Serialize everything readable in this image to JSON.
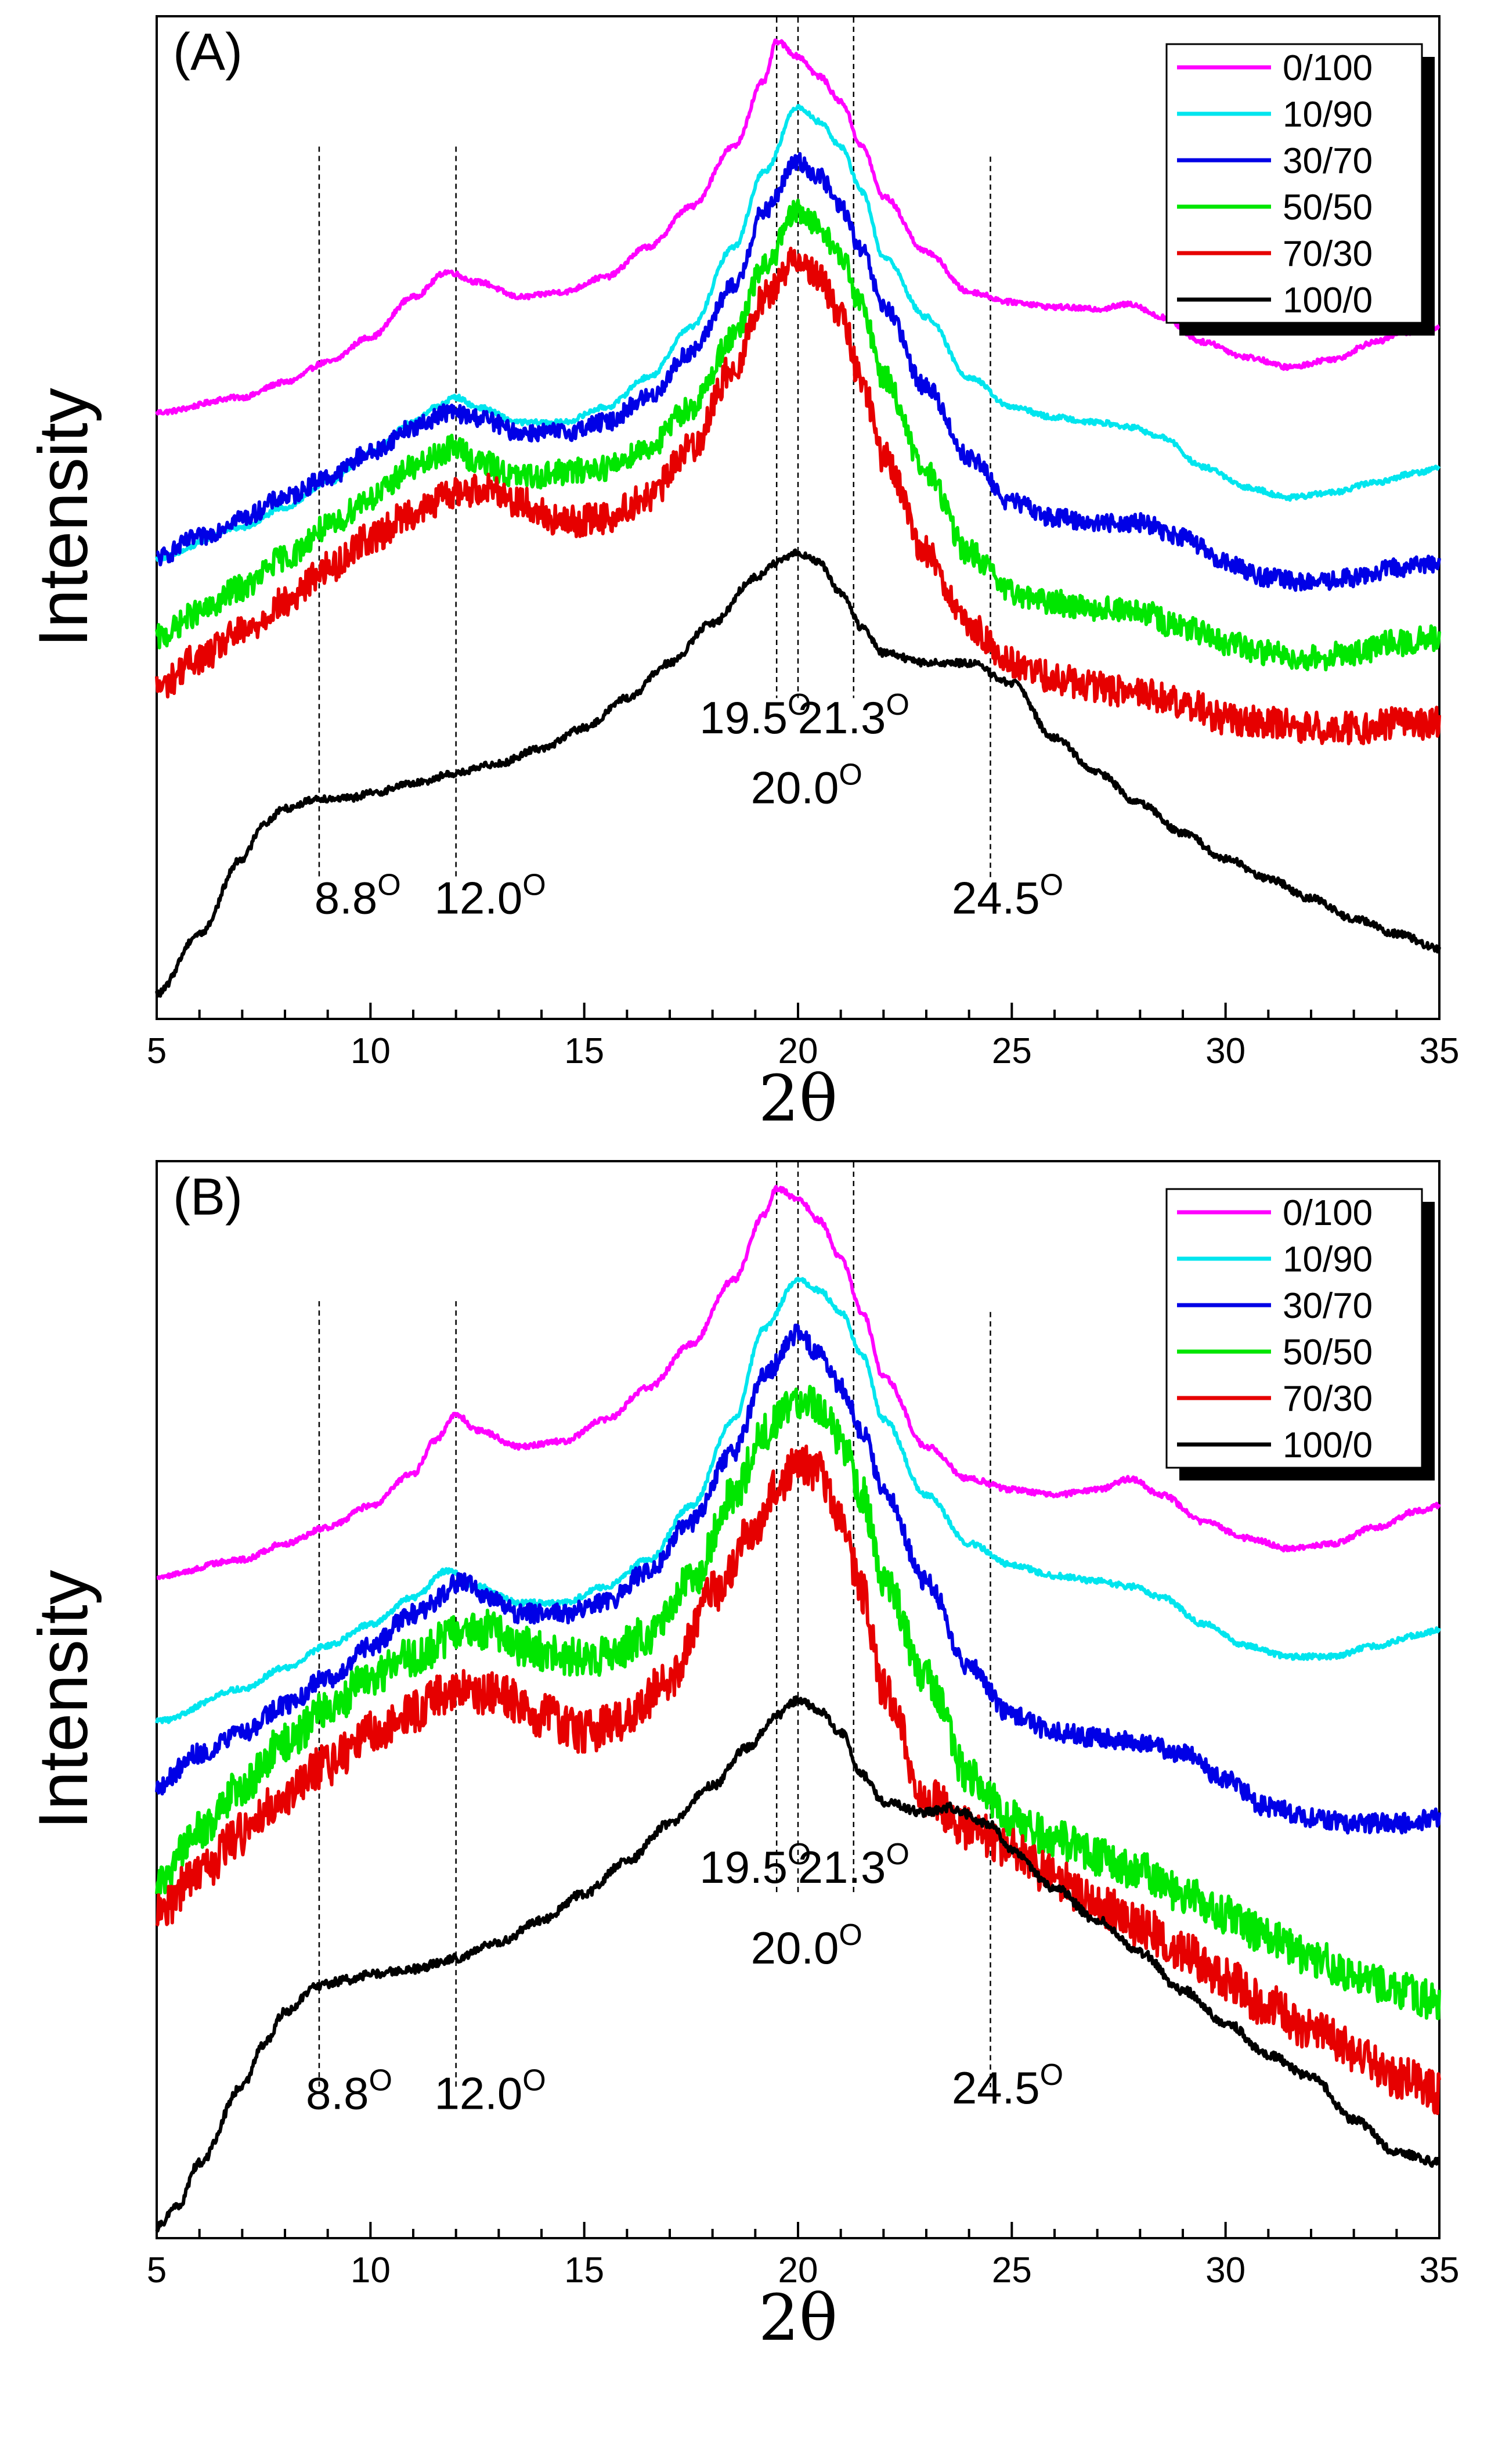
{
  "chart_data": [
    {
      "type": "line",
      "panel_label": "(A)",
      "xlabel": "2θ",
      "ylabel": "Intensity",
      "xlim": [
        5,
        35
      ],
      "ylim": [
        0,
        100
      ],
      "xticks": [
        "5",
        "10",
        "15",
        "20",
        "25",
        "30",
        "35"
      ],
      "legend_position": "top-right",
      "series": [
        {
          "name": "0/100",
          "color": "#ff00ff",
          "noise": 0.25,
          "x": [
            5,
            7,
            8,
            9,
            10,
            11,
            11.8,
            12.5,
            13.5,
            14.5,
            15.5,
            16.5,
            17.5,
            18.5,
            19.2,
            19.5,
            20.0,
            20.5,
            21.0,
            21.5,
            22.0,
            23.0,
            24.0,
            25.0,
            26.0,
            27.0,
            27.8,
            28.5,
            29.5,
            30.5,
            31.5,
            32.5,
            33.5,
            34.2,
            35
          ],
          "y": [
            60.5,
            62,
            63.5,
            65.5,
            68,
            72,
            74.5,
            73.5,
            72,
            72.5,
            74,
            77,
            81,
            87,
            93.5,
            97.5,
            96,
            94,
            91.5,
            87,
            82,
            76.5,
            72.5,
            71.5,
            71,
            70.8,
            71.3,
            70,
            67.5,
            66,
            65,
            65.8,
            67.5,
            68.5,
            69
          ]
        },
        {
          "name": "10/90",
          "color": "#00e5ee",
          "noise": 0.25,
          "x": [
            5,
            7,
            8,
            9,
            10,
            11,
            11.5,
            12.0,
            12.5,
            13.5,
            14.5,
            15.5,
            16.5,
            17.5,
            18.5,
            19.2,
            20.0,
            20.5,
            21.0,
            21.5,
            22.0,
            23.0,
            24.0,
            25.0,
            26.0,
            27.0,
            27.8,
            28.5,
            29.5,
            30.5,
            31.5,
            32.5,
            33.5,
            34.5,
            35
          ],
          "y": [
            46,
            49,
            51,
            53.5,
            56.5,
            59.5,
            61,
            62,
            61,
            59.5,
            59.5,
            61,
            64,
            69,
            77,
            84.5,
            91,
            89.5,
            87,
            82.5,
            76,
            70,
            64,
            61,
            60,
            59.5,
            59,
            58,
            55,
            53,
            52,
            52.5,
            53.5,
            54.5,
            55
          ]
        },
        {
          "name": "30/70",
          "color": "#0000e6",
          "noise": 0.9,
          "x": [
            5,
            6,
            7,
            8,
            9,
            10,
            11,
            11.8,
            12.5,
            13.5,
            14.5,
            15.5,
            16.5,
            17.5,
            18.5,
            19.2,
            20.0,
            20.5,
            21.0,
            21.5,
            22.0,
            23.0,
            24.0,
            25.0,
            26.0,
            27.0,
            28.0,
            29.0,
            30.0,
            31.0,
            32.0,
            33.0,
            34.0,
            35
          ],
          "y": [
            46,
            48,
            50,
            52,
            54,
            56.5,
            59,
            60.5,
            60,
            58.5,
            58.5,
            59.5,
            62,
            66.5,
            73,
            80.5,
            85.5,
            84,
            81,
            76.5,
            71,
            63,
            56,
            51.5,
            50,
            49.5,
            49.5,
            48,
            45.5,
            44,
            43.5,
            44,
            45,
            45.5
          ]
        },
        {
          "name": "50/50",
          "color": "#00e600",
          "noise": 1.3,
          "x": [
            5,
            6,
            7,
            8,
            9,
            10,
            11,
            12.0,
            12.5,
            13.5,
            14.5,
            15.5,
            16.5,
            17.5,
            18.5,
            19.2,
            20.0,
            20.5,
            21.0,
            21.5,
            22.0,
            23.0,
            24.0,
            25.0,
            26.0,
            27.0,
            28.0,
            29.0,
            30.0,
            31.0,
            32.0,
            33.0,
            34.0,
            35
          ],
          "y": [
            38,
            40.5,
            43,
            46,
            49,
            52,
            55,
            57,
            55.5,
            54,
            54.5,
            55,
            57,
            61,
            68,
            75,
            80.5,
            79,
            76,
            71,
            64,
            54.5,
            46.5,
            42.5,
            41.5,
            41,
            40.5,
            39,
            37.5,
            36.5,
            36,
            36.5,
            37.5,
            38
          ]
        },
        {
          "name": "70/30",
          "color": "#e60000",
          "noise": 1.6,
          "x": [
            5,
            6,
            7,
            8,
            9,
            10,
            11,
            12.0,
            12.8,
            13.5,
            14.5,
            15.5,
            16.5,
            17.5,
            18.5,
            19.2,
            20.0,
            20.5,
            21.0,
            21.5,
            22.0,
            23.0,
            24.0,
            25.0,
            26.0,
            27.0,
            28.0,
            29.0,
            30.0,
            31.0,
            32.0,
            33.0,
            34.0,
            35
          ],
          "y": [
            33,
            36,
            38.5,
            41.5,
            45,
            48,
            50.5,
            52.5,
            53,
            51.5,
            49.5,
            50,
            52,
            57,
            65,
            72,
            76,
            74,
            70,
            63.5,
            56,
            46.5,
            39,
            35.5,
            34,
            33,
            32.5,
            31.5,
            30,
            29.5,
            29,
            29,
            29.5,
            29.5
          ]
        },
        {
          "name": "100/0",
          "color": "#000000",
          "noise": 0.35,
          "x": [
            5,
            6,
            7,
            7.5,
            8,
            8.8,
            9.5,
            10,
            11,
            12,
            13,
            14,
            15,
            16,
            17,
            18,
            19,
            19.5,
            20.0,
            20.5,
            21.0,
            21.5,
            22,
            23,
            24,
            25,
            26,
            27,
            28,
            29,
            30,
            31,
            32,
            33,
            34,
            35
          ],
          "y": [
            2.5,
            8.5,
            16,
            19.5,
            21,
            22,
            22,
            22.5,
            23.5,
            24.5,
            25.5,
            27,
            29,
            32,
            35.5,
            39.5,
            44,
            45.5,
            46.5,
            45.5,
            42.5,
            39,
            36.5,
            35.5,
            35.5,
            33.5,
            28,
            24.5,
            21.5,
            18.5,
            16,
            14,
            12,
            10,
            8.5,
            7
          ]
        }
      ],
      "reference_lines": [
        8.8,
        12.0,
        19.5,
        20.0,
        21.3,
        24.5
      ],
      "annotations": [
        {
          "base": "8.8",
          "sup": "O",
          "x": 9.7,
          "y": 10.5
        },
        {
          "base": "12.0",
          "sup": "O",
          "x": 12.8,
          "y": 10.5
        },
        {
          "base": "19.5",
          "sup": "O",
          "x": 19.0,
          "y": 28.5
        },
        {
          "base": "21.3",
          "sup": "O",
          "x": 21.3,
          "y": 28.5
        },
        {
          "base": "20.0",
          "sup": "O",
          "x": 20.2,
          "y": 21.5
        },
        {
          "base": "24.5",
          "sup": "O",
          "x": 24.9,
          "y": 10.5
        }
      ]
    },
    {
      "type": "line",
      "panel_label": "(B)",
      "xlabel": "2θ",
      "ylabel": "Intensity",
      "xlim": [
        5,
        35
      ],
      "ylim": [
        0,
        100
      ],
      "xticks": [
        "5",
        "10",
        "15",
        "20",
        "25",
        "30",
        "35"
      ],
      "legend_position": "top-right",
      "series": [
        {
          "name": "0/100",
          "color": "#ff00ff",
          "noise": 0.25,
          "x": [
            5,
            7,
            8,
            9,
            10,
            11,
            11.5,
            12.0,
            12.5,
            13.5,
            14.5,
            15.5,
            16.5,
            17.5,
            18.5,
            19.2,
            19.5,
            20.0,
            20.5,
            21.0,
            21.5,
            22.0,
            23.0,
            24.0,
            25.0,
            26.0,
            27.0,
            27.8,
            28.5,
            29.5,
            30.5,
            31.5,
            32.5,
            33.5,
            34.5,
            35
          ],
          "y": [
            61.5,
            63,
            64.5,
            66,
            68,
            71,
            74,
            76.5,
            75,
            73.5,
            74,
            76,
            79,
            83,
            89,
            95,
            97.5,
            96.5,
            94.5,
            91,
            86,
            80,
            73.5,
            70.5,
            69.5,
            69,
            69.5,
            70.5,
            69,
            66.5,
            65,
            64,
            64.5,
            66,
            67.5,
            68
          ]
        },
        {
          "name": "10/90",
          "color": "#00e5ee",
          "noise": 0.25,
          "x": [
            5,
            7,
            8,
            9,
            10,
            11,
            11.8,
            12.5,
            13.5,
            14.5,
            15.5,
            16.5,
            17.5,
            18.5,
            19.2,
            20.0,
            20.5,
            21.0,
            21.5,
            22.0,
            23.0,
            24.0,
            25.0,
            26.0,
            27.0,
            27.8,
            28.5,
            29.5,
            30.5,
            31.5,
            32.5,
            33.5,
            34.5,
            35
          ],
          "y": [
            48,
            51,
            53,
            55,
            57,
            59.5,
            62,
            60.5,
            59,
            59,
            60.5,
            63,
            68,
            76,
            84.5,
            89,
            88,
            86,
            82,
            76,
            69,
            64.5,
            62.5,
            61.5,
            61,
            60.5,
            59.5,
            57,
            55,
            54,
            54,
            55,
            56,
            56.5
          ]
        },
        {
          "name": "30/70",
          "color": "#0000e6",
          "noise": 0.9,
          "x": [
            5,
            6,
            7,
            8,
            9,
            10,
            11,
            12.2,
            12.8,
            13.5,
            14.5,
            15.5,
            16.5,
            17.5,
            18.5,
            19.2,
            20.0,
            20.5,
            21.0,
            21.5,
            22.0,
            23.0,
            24.0,
            25.0,
            26.0,
            27.0,
            28.0,
            29.0,
            30.0,
            31.0,
            32.0,
            33.0,
            34.0,
            35
          ],
          "y": [
            42,
            45,
            47,
            49.5,
            52,
            55,
            58,
            61,
            59.5,
            58,
            58,
            59,
            62,
            66.5,
            73,
            80,
            84,
            82,
            79,
            75,
            69.5,
            61,
            53,
            48.5,
            47,
            46.5,
            46,
            45,
            42.5,
            40,
            39,
            38.5,
            38.5,
            39
          ]
        },
        {
          "name": "50/50",
          "color": "#00e600",
          "noise": 1.8,
          "x": [
            5,
            6,
            7,
            8,
            9,
            10,
            11,
            12,
            12.8,
            13.5,
            14.5,
            15.5,
            16.5,
            17.5,
            18.5,
            19.2,
            20.0,
            20.5,
            21.0,
            21.5,
            22.0,
            23.0,
            24.0,
            25.0,
            26.0,
            27.0,
            28.0,
            29.0,
            30.0,
            31.0,
            32.0,
            33.0,
            34.0,
            35
          ],
          "y": [
            33,
            38,
            42,
            46,
            49,
            52,
            54,
            56,
            56.5,
            55,
            54,
            54,
            56,
            61,
            69,
            75,
            78,
            77,
            74,
            69,
            61,
            52,
            43,
            39,
            37,
            35.5,
            34,
            32,
            30,
            28,
            26,
            24.5,
            23,
            22
          ]
        },
        {
          "name": "70/30",
          "color": "#e60000",
          "noise": 2.0,
          "x": [
            5,
            6,
            7,
            8,
            9,
            10,
            11,
            12,
            13,
            14,
            15,
            16,
            17,
            18,
            19,
            19.5,
            20.0,
            20.5,
            21.0,
            21.5,
            22.0,
            23.0,
            24.0,
            25.0,
            26.0,
            27.0,
            28.0,
            29.0,
            30.0,
            31.0,
            32.0,
            33.0,
            34.0,
            35
          ],
          "y": [
            30,
            34,
            37.5,
            41,
            44,
            47,
            49,
            51,
            50.5,
            48.5,
            47,
            48,
            52,
            60,
            66,
            69.5,
            72,
            71,
            67,
            60,
            51,
            41,
            38,
            36,
            33.5,
            31,
            29,
            26.5,
            24,
            21.5,
            19.5,
            17.5,
            15,
            13.5
          ]
        },
        {
          "name": "100/0",
          "color": "#000000",
          "noise": 0.4,
          "x": [
            5,
            5.5,
            6,
            7,
            7.5,
            8,
            8.8,
            9.5,
            10,
            11,
            12,
            13,
            14,
            15,
            16,
            17,
            18,
            18.8,
            19.5,
            20.0,
            20.5,
            21.0,
            21.5,
            22,
            23,
            23.5,
            24.5,
            25,
            26,
            27,
            28,
            29,
            30,
            31,
            32,
            33,
            34,
            35
          ],
          "y": [
            1,
            3,
            7,
            14,
            18,
            21,
            23.5,
            24,
            24.5,
            25,
            26,
            27.5,
            29.5,
            32,
            35,
            38.5,
            42,
            45.5,
            48.5,
            50,
            49,
            47,
            43,
            40.5,
            39.5,
            40,
            38.5,
            36,
            32.5,
            29.5,
            26.5,
            23,
            20,
            17,
            15,
            11,
            8,
            7
          ]
        }
      ],
      "reference_lines": [
        8.8,
        12.0,
        19.5,
        20.0,
        21.3,
        24.5
      ],
      "annotations": [
        {
          "base": "8.8",
          "sup": "O",
          "x": 9.5,
          "y": 12.0
        },
        {
          "base": "12.0",
          "sup": "O",
          "x": 12.8,
          "y": 12.0
        },
        {
          "base": "19.5",
          "sup": "O",
          "x": 19.0,
          "y": 33.0
        },
        {
          "base": "21.3",
          "sup": "O",
          "x": 21.3,
          "y": 33.0
        },
        {
          "base": "20.0",
          "sup": "O",
          "x": 20.2,
          "y": 25.5
        },
        {
          "base": "24.5",
          "sup": "O",
          "x": 24.9,
          "y": 12.5
        }
      ]
    }
  ]
}
